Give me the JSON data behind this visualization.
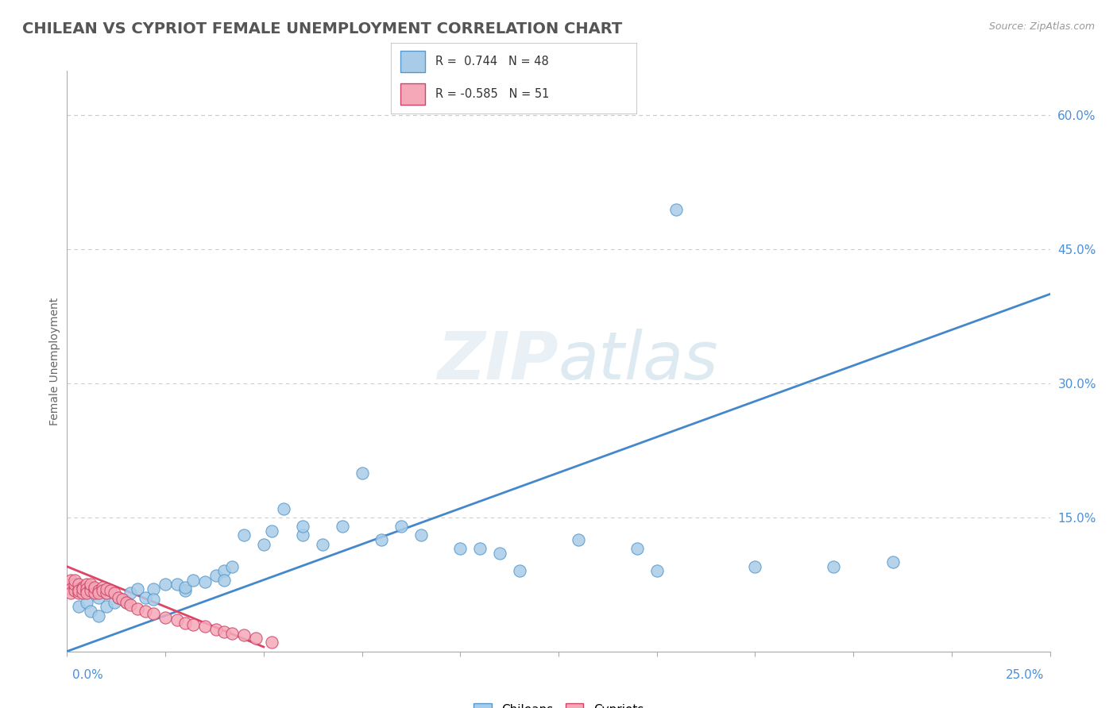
{
  "title": "CHILEAN VS CYPRIOT FEMALE UNEMPLOYMENT CORRELATION CHART",
  "source_text": "Source: ZipAtlas.com",
  "ylabel": "Female Unemployment",
  "right_yticks": [
    "60.0%",
    "45.0%",
    "30.0%",
    "15.0%"
  ],
  "right_ytick_vals": [
    0.6,
    0.45,
    0.3,
    0.15
  ],
  "xmin": 0.0,
  "xmax": 0.25,
  "ymin": 0.0,
  "ymax": 0.65,
  "chilean_color": "#a8cce8",
  "cypriot_color": "#f5a8b8",
  "chilean_edge_color": "#5599cc",
  "cypriot_edge_color": "#cc4466",
  "chilean_line_color": "#4488cc",
  "cypriot_line_color": "#dd4466",
  "background_color": "#ffffff",
  "grid_color": "#cccccc",
  "watermark": "ZIPatlas",
  "ch_line_x0": 0.0,
  "ch_line_x1": 0.25,
  "ch_line_y0": 0.0,
  "ch_line_y1": 0.4,
  "cy_line_x0": 0.0,
  "cy_line_x1": 0.05,
  "cy_line_y0": 0.095,
  "cy_line_y1": 0.005,
  "chileans_x": [
    0.003,
    0.005,
    0.006,
    0.008,
    0.008,
    0.01,
    0.01,
    0.012,
    0.013,
    0.015,
    0.016,
    0.018,
    0.02,
    0.022,
    0.022,
    0.025,
    0.028,
    0.03,
    0.03,
    0.032,
    0.035,
    0.038,
    0.04,
    0.04,
    0.042,
    0.045,
    0.05,
    0.052,
    0.055,
    0.06,
    0.06,
    0.065,
    0.07,
    0.075,
    0.08,
    0.085,
    0.09,
    0.1,
    0.105,
    0.11,
    0.115,
    0.13,
    0.145,
    0.15,
    0.175,
    0.195,
    0.21,
    0.155
  ],
  "chileans_y": [
    0.05,
    0.055,
    0.045,
    0.06,
    0.04,
    0.05,
    0.065,
    0.055,
    0.06,
    0.055,
    0.065,
    0.07,
    0.06,
    0.07,
    0.058,
    0.075,
    0.075,
    0.068,
    0.072,
    0.08,
    0.078,
    0.085,
    0.09,
    0.08,
    0.095,
    0.13,
    0.12,
    0.135,
    0.16,
    0.13,
    0.14,
    0.12,
    0.14,
    0.2,
    0.125,
    0.14,
    0.13,
    0.115,
    0.115,
    0.11,
    0.09,
    0.125,
    0.115,
    0.09,
    0.095,
    0.095,
    0.1,
    0.495
  ],
  "cypriots_x": [
    0.001,
    0.001,
    0.001,
    0.001,
    0.002,
    0.002,
    0.002,
    0.002,
    0.003,
    0.003,
    0.003,
    0.003,
    0.004,
    0.004,
    0.004,
    0.005,
    0.005,
    0.005,
    0.005,
    0.006,
    0.006,
    0.006,
    0.007,
    0.007,
    0.007,
    0.008,
    0.008,
    0.009,
    0.009,
    0.01,
    0.01,
    0.011,
    0.012,
    0.013,
    0.014,
    0.015,
    0.016,
    0.018,
    0.02,
    0.022,
    0.025,
    0.028,
    0.03,
    0.032,
    0.035,
    0.038,
    0.04,
    0.042,
    0.045,
    0.048,
    0.052
  ],
  "cypriots_y": [
    0.075,
    0.08,
    0.07,
    0.065,
    0.072,
    0.068,
    0.075,
    0.08,
    0.07,
    0.065,
    0.075,
    0.068,
    0.072,
    0.065,
    0.07,
    0.068,
    0.075,
    0.07,
    0.065,
    0.072,
    0.068,
    0.075,
    0.07,
    0.065,
    0.072,
    0.068,
    0.065,
    0.072,
    0.068,
    0.065,
    0.07,
    0.068,
    0.065,
    0.06,
    0.058,
    0.055,
    0.052,
    0.048,
    0.045,
    0.042,
    0.038,
    0.035,
    0.032,
    0.03,
    0.028,
    0.025,
    0.022,
    0.02,
    0.018,
    0.015,
    0.01
  ]
}
